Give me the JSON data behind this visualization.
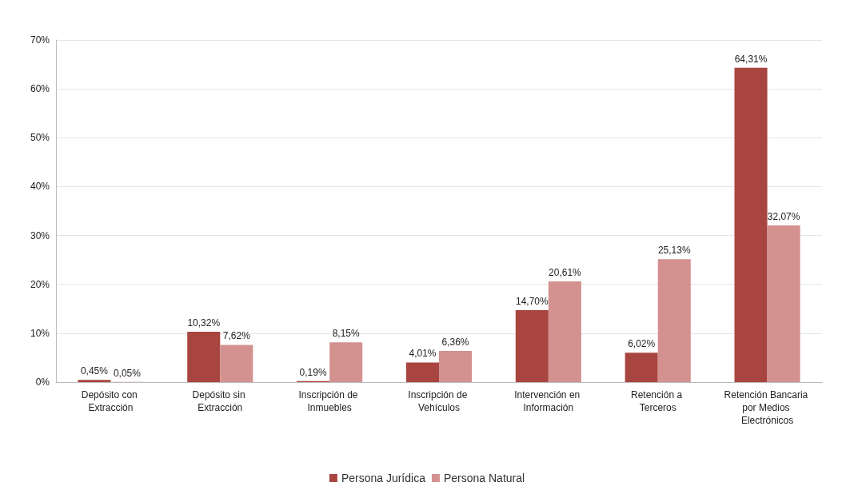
{
  "chart_data": {
    "type": "bar",
    "categories": [
      "Depósito con Extracción",
      "Depósito sin Extracción",
      "Inscripción de Inmuebles",
      "Inscripción de Vehículos",
      "Intervención en Información",
      "Retención a Terceros",
      "Retención Bancaria por Medios Electrónicos"
    ],
    "series": [
      {
        "name": "Persona Jurídica",
        "color": "#a94540",
        "values": [
          0.45,
          10.32,
          0.19,
          4.01,
          14.7,
          6.02,
          64.31
        ],
        "value_labels": [
          "0,45%",
          "10,32%",
          "0,19%",
          "4,01%",
          "14,70%",
          "6,02%",
          "64,31%"
        ]
      },
      {
        "name": "Persona Natural",
        "color": "#d39190",
        "values": [
          0.05,
          7.62,
          8.15,
          6.36,
          20.61,
          25.13,
          32.07
        ],
        "value_labels": [
          "0,05%",
          "7,62%",
          "8,15%",
          "6,36%",
          "20,61%",
          "25,13%",
          "32,07%"
        ]
      }
    ],
    "ylim": [
      0,
      70
    ],
    "yticks": [
      {
        "value": 0,
        "label": "0%"
      },
      {
        "value": 10,
        "label": "10%"
      },
      {
        "value": 20,
        "label": "20%"
      },
      {
        "value": 30,
        "label": "30%"
      },
      {
        "value": 40,
        "label": "40%"
      },
      {
        "value": 50,
        "label": "50%"
      },
      {
        "value": 60,
        "label": "60%"
      },
      {
        "value": 70,
        "label": "70%"
      }
    ],
    "grid": "y",
    "legend": "bottom"
  }
}
